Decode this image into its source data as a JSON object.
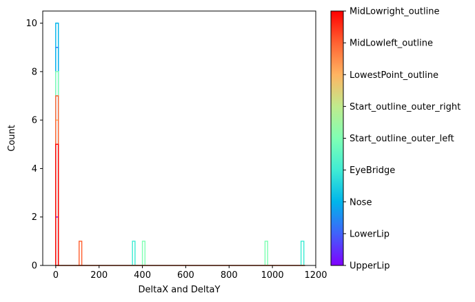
{
  "chart_data": {
    "type": "histogram",
    "xlabel": "DeltaX and DeltaY",
    "ylabel": "Count",
    "xlim": [
      -60,
      1200
    ],
    "ylim": [
      0,
      10.5
    ],
    "x_ticks": [
      0,
      200,
      400,
      600,
      800,
      1000,
      1200
    ],
    "y_ticks": [
      0,
      2,
      4,
      6,
      8,
      10
    ],
    "histtype": "step",
    "colormap": "rainbow",
    "colorbar": {
      "labels": [
        "UpperLip",
        "LowerLip",
        "Nose",
        "EyeBridge",
        "Start_outline_outer_left",
        "Start_outline_outer_right",
        "LowestPoint_outline",
        "MidLowleft_outline",
        "MidLowright_outline"
      ],
      "colors": [
        "#8000ff",
        "#4062fa",
        "#00b5eb",
        "#40ecd4",
        "#80ffb4",
        "#c0eb8d",
        "#ffb462",
        "#ff6232",
        "#ff0000"
      ]
    },
    "series": [
      {
        "name": "UpperLip",
        "color": "#8000ff",
        "bars": [
          {
            "x0": 0,
            "x1": 12,
            "count": 2
          }
        ]
      },
      {
        "name": "LowerLip",
        "color": "#4062fa",
        "bars": [
          {
            "x0": 0,
            "x1": 12,
            "count": 9
          }
        ]
      },
      {
        "name": "Nose",
        "color": "#00b5eb",
        "bars": [
          {
            "x0": 0,
            "x1": 12,
            "count": 10
          }
        ]
      },
      {
        "name": "EyeBridge",
        "color": "#40ecd4",
        "bars": [
          {
            "x0": 0,
            "x1": 12,
            "count": 7
          },
          {
            "x0": 1132,
            "x1": 1145,
            "count": 1
          },
          {
            "x0": 354,
            "x1": 366,
            "count": 1
          }
        ]
      },
      {
        "name": "Start_outline_outer_left",
        "color": "#80ffb4",
        "bars": [
          {
            "x0": 0,
            "x1": 12,
            "count": 8
          },
          {
            "x0": 966,
            "x1": 978,
            "count": 1
          },
          {
            "x0": 400,
            "x1": 412,
            "count": 1
          }
        ]
      },
      {
        "name": "Start_outline_outer_right",
        "color": "#c0eb8d",
        "bars": [
          {
            "x0": 0,
            "x1": 12,
            "count": 6
          }
        ]
      },
      {
        "name": "LowestPoint_outline",
        "color": "#ffb462",
        "bars": [
          {
            "x0": 0,
            "x1": 12,
            "count": 6
          }
        ]
      },
      {
        "name": "MidLowleft_outline",
        "color": "#ff6232",
        "bars": [
          {
            "x0": 0,
            "x1": 12,
            "count": 7
          },
          {
            "x0": 108,
            "x1": 120,
            "count": 1
          }
        ]
      },
      {
        "name": "MidLowright_outline",
        "color": "#ff0000",
        "bars": [
          {
            "x0": 0,
            "x1": 12,
            "count": 5
          }
        ]
      }
    ]
  }
}
